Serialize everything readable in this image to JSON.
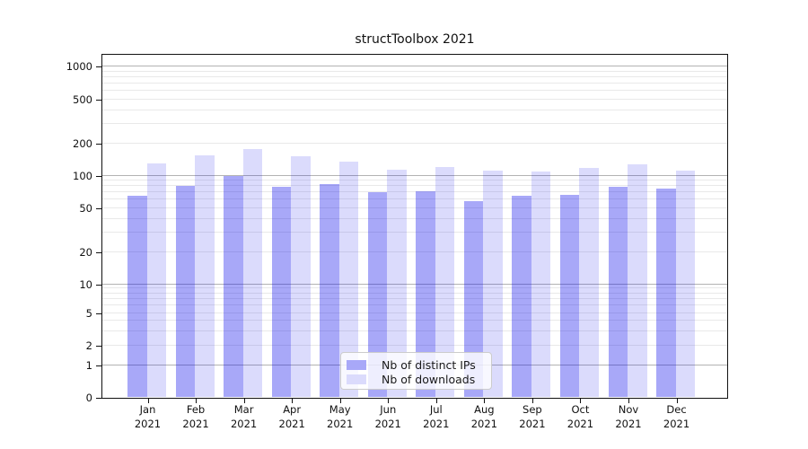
{
  "title": "structToolbox 2021",
  "chart_data": {
    "type": "bar",
    "title": "structToolbox 2021",
    "categories": [
      "Jan 2021",
      "Feb 2021",
      "Mar 2021",
      "Apr 2021",
      "May 2021",
      "Jun 2021",
      "Jul 2021",
      "Aug 2021",
      "Sep 2021",
      "Oct 2021",
      "Nov 2021",
      "Dec 2021"
    ],
    "series": [
      {
        "name": "Nb of distinct IPs",
        "color": "#0000eb",
        "alpha": 0.34,
        "legend_swatch": "#a8a8f8",
        "values": [
          64,
          78,
          97,
          77,
          81,
          69,
          70,
          57,
          63,
          65,
          77,
          74
        ]
      },
      {
        "name": "Nb of downloads",
        "color": "#0000eb",
        "alpha": 0.14,
        "legend_swatch": "#dbdbfc",
        "values": [
          128,
          151,
          174,
          148,
          133,
          112,
          117,
          110,
          108,
          115,
          125,
          110
        ]
      }
    ],
    "yscale": "symlog",
    "ylim": [
      0,
      1000
    ],
    "y_ticks": [
      1000,
      500,
      200,
      100,
      50,
      20,
      10,
      5,
      2,
      1,
      0
    ],
    "grid": true,
    "legend_position": "inside bottom-center"
  },
  "colors": {
    "bar_distinct_ips": "#a8a8f8",
    "bar_downloads": "#dbdbfc",
    "grid_major": "#b3b3b3",
    "grid_minor": "#e9e9e9",
    "spine": "#111111",
    "text": "#111111",
    "legend_border": "#cccccc"
  }
}
